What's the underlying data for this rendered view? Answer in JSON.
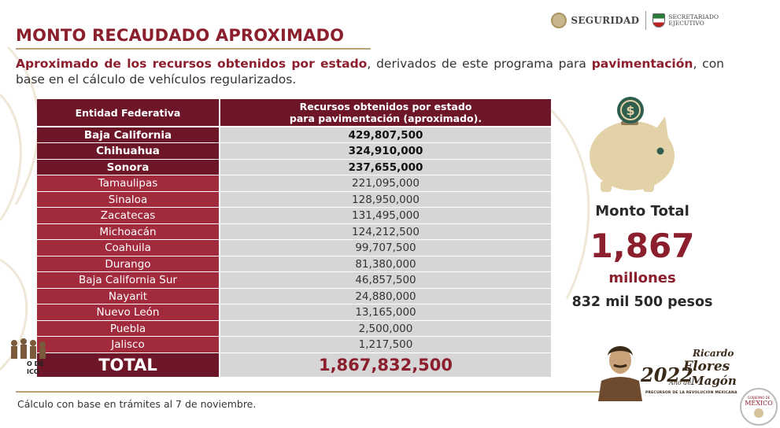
{
  "header": {
    "logo_seguridad": "SEGURIDAD",
    "logo_sesnsp_lines": [
      "SECRETARIADO",
      "EJECUTIVO"
    ]
  },
  "title": "MONTO RECAUDADO APROXIMADO",
  "subtitle": {
    "bold1": "Aproximado de los recursos obtenidos por estado",
    "text1": ", derivados de este programa para ",
    "bold2": "pavimentación",
    "text2": ", con base en el cálculo de vehículos regularizados."
  },
  "table": {
    "col1_header": "Entidad Federativa",
    "col2_header_line1": "Recursos obtenidos por estado",
    "col2_header_line2": "para pavimentación (aproximado).",
    "rows": [
      {
        "state": "Baja California",
        "amount": "429,807,500"
      },
      {
        "state": "Chihuahua",
        "amount": "324,910,000"
      },
      {
        "state": "Sonora",
        "amount": "237,655,000"
      },
      {
        "state": "Tamaulipas",
        "amount": "221,095,000"
      },
      {
        "state": "Sinaloa",
        "amount": "128,950,000"
      },
      {
        "state": "Zacatecas",
        "amount": "131,495,000"
      },
      {
        "state": "Michoacán",
        "amount": "124,212,500"
      },
      {
        "state": "Coahuila",
        "amount": "99,707,500"
      },
      {
        "state": "Durango",
        "amount": "81,380,000"
      },
      {
        "state": "Baja California Sur",
        "amount": "46,857,500"
      },
      {
        "state": "Nayarit",
        "amount": "24,880,000"
      },
      {
        "state": "Nuevo León",
        "amount": "13,165,000"
      },
      {
        "state": "Puebla",
        "amount": "2,500,000"
      },
      {
        "state": "Jalisco",
        "amount": "1,217,500"
      }
    ],
    "total_label": "TOTAL",
    "total_value": "1,867,832,500"
  },
  "summary": {
    "label": "Monto Total",
    "big_number": "1,867",
    "unit": "millones",
    "rest": "832 mil 500 pesos"
  },
  "footnote": "Cálculo con base en trámites al 7 de noviembre.",
  "left_logo_text": [
    "O DE",
    "ICO"
  ],
  "commemorative": {
    "year": "2022",
    "anode": "Año de",
    "name1": "Ricardo",
    "name2": "Flores",
    "name3": "Magón",
    "caption": "PRECURSOR DE LA REVOLUCIÓN MEXICANA"
  },
  "gob_badge": {
    "small": "GOBIERNO DE",
    "main": "MÉXICO"
  },
  "colors": {
    "brand": "#8c1f2d",
    "header_bg": "#6c1628",
    "cell_bg": "#d6d6d6",
    "accent_gold": "#b8a278",
    "piggy": "#e3d2a8",
    "coin": "#2f5e4e"
  },
  "icons": [
    "piggy-bank-icon",
    "dollar-coin-icon"
  ]
}
